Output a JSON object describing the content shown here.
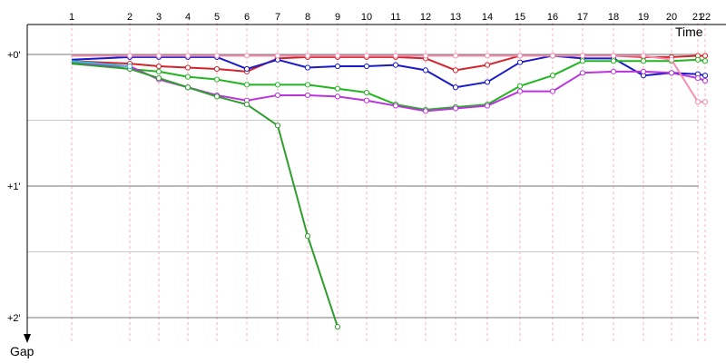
{
  "chart_data": {
    "type": "line",
    "title": "",
    "xlabel": "Time",
    "ylabel": "Gap",
    "x_tick_labels": [
      "1",
      "2",
      "3",
      "4",
      "5",
      "6",
      "7",
      "8",
      "9",
      "10",
      "11",
      "12",
      "13",
      "14",
      "15",
      "16",
      "17",
      "18",
      "19",
      "20",
      "21",
      "22"
    ],
    "y_tick_labels": [
      "+0'",
      "+1'",
      "+2'"
    ],
    "ylim_minutes": [
      0,
      2.2
    ],
    "y_inverted": true,
    "grid": true,
    "legend": "none",
    "units": "gap in minutes",
    "series": [
      {
        "color": "#d3242b",
        "x": [
          1,
          2,
          3,
          4,
          5,
          6,
          7,
          8,
          9,
          10,
          11,
          12,
          13,
          14,
          15,
          16,
          17,
          18,
          19,
          20,
          21,
          22
        ],
        "y": [
          0.05,
          0.07,
          0.09,
          0.1,
          0.11,
          0.13,
          0.03,
          0.02,
          0.02,
          0.02,
          0.02,
          0.03,
          0.12,
          0.08,
          0.01,
          0.01,
          0.01,
          0.01,
          0.02,
          0.02,
          0.01,
          0.01
        ]
      },
      {
        "color": "#1a1ac8",
        "x": [
          1,
          2,
          3,
          4,
          5,
          6,
          7,
          8,
          9,
          10,
          11,
          12,
          13,
          14,
          15,
          16,
          17,
          18,
          19,
          20,
          21,
          22
        ],
        "y": [
          0.04,
          0.02,
          0.02,
          0.02,
          0.02,
          0.11,
          0.04,
          0.1,
          0.09,
          0.09,
          0.08,
          0.12,
          0.25,
          0.21,
          0.06,
          0.01,
          0.03,
          0.03,
          0.16,
          0.14,
          0.15,
          0.16
        ]
      },
      {
        "color": "#22b522",
        "x": [
          1,
          2,
          3,
          4,
          5,
          6,
          7,
          8,
          9,
          10,
          11,
          12,
          13,
          14,
          15,
          16,
          17,
          18,
          19,
          20,
          21,
          22
        ],
        "y": [
          0.06,
          0.11,
          0.13,
          0.17,
          0.19,
          0.23,
          0.23,
          0.23,
          0.26,
          0.29,
          0.38,
          0.42,
          0.4,
          0.38,
          0.24,
          0.16,
          0.05,
          0.05,
          0.05,
          0.05,
          0.04,
          0.05
        ]
      },
      {
        "color": "#bb33dd",
        "x": [
          1,
          2,
          3,
          4,
          5,
          6,
          7,
          8,
          9,
          10,
          11,
          12,
          13,
          14,
          15,
          16,
          17,
          18,
          19,
          20,
          21,
          22
        ],
        "y": [
          0.07,
          0.09,
          0.19,
          0.25,
          0.31,
          0.35,
          0.31,
          0.31,
          0.32,
          0.35,
          0.39,
          0.43,
          0.41,
          0.39,
          0.28,
          0.28,
          0.14,
          0.13,
          0.13,
          0.14,
          0.18,
          0.2
        ]
      },
      {
        "color": "#2f9e2f",
        "x": [
          1,
          2,
          3,
          4,
          5,
          6,
          7,
          8,
          9
        ],
        "y": [
          0.07,
          0.11,
          0.18,
          0.25,
          0.32,
          0.38,
          0.54,
          1.38,
          2.07
        ]
      },
      {
        "color": "#f48fb1",
        "x": [
          1,
          2,
          3,
          4,
          5,
          6,
          7,
          8,
          9,
          10,
          11,
          12,
          13,
          14,
          15,
          16,
          17,
          18,
          19,
          20,
          21,
          22
        ],
        "y": [
          0.01,
          0.01,
          0.01,
          0.01,
          0.01,
          0.01,
          0.01,
          0.01,
          0.01,
          0.01,
          0.01,
          0.01,
          0.01,
          0.01,
          0.01,
          0.01,
          0.01,
          0.01,
          0.01,
          0.04,
          0.36,
          0.36
        ]
      },
      {
        "color": "#40b4dd",
        "x": [
          1,
          2
        ],
        "y": [
          0.05,
          0.09
        ]
      }
    ]
  }
}
